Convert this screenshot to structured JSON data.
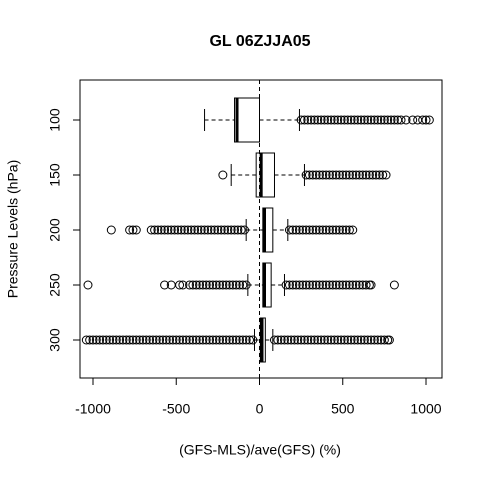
{
  "chart_data": {
    "type": "boxplot",
    "title": "GL 06ZJJA05",
    "x_label": "(GFS-MLS)/ave(GFS) (%)",
    "y_label": "Pressure Levels (hPa)",
    "categories": [
      "100",
      "150",
      "200",
      "250",
      "300"
    ],
    "xlim": [
      -1078,
      1096
    ],
    "xticks": [
      -1000,
      -500,
      0,
      500,
      1000
    ],
    "vline": 0,
    "boxes": [
      {
        "whisker_low": -330,
        "q1": -150,
        "median": -135,
        "q3": 0,
        "whisker_high": 240,
        "outliers": [
          250,
          270,
          290,
          310,
          330,
          350,
          370,
          390,
          410,
          430,
          450,
          470,
          490,
          510,
          530,
          550,
          570,
          590,
          610,
          630,
          650,
          670,
          690,
          710,
          730,
          750,
          770,
          790,
          810,
          830,
          850,
          880,
          920,
          950,
          980,
          1000,
          1020
        ]
      },
      {
        "whisker_low": -170,
        "q1": -20,
        "median": 10,
        "q3": 90,
        "whisker_high": 270,
        "outliers": [
          -220,
          280,
          300,
          320,
          340,
          360,
          380,
          400,
          420,
          440,
          460,
          480,
          500,
          520,
          540,
          560,
          580,
          600,
          620,
          640,
          660,
          680,
          700,
          720,
          740,
          760
        ]
      },
      {
        "whisker_low": -80,
        "q1": 20,
        "median": 30,
        "q3": 80,
        "whisker_high": 170,
        "outliers": [
          -890,
          -780,
          -760,
          -740,
          -650,
          -630,
          -610,
          -590,
          -570,
          -550,
          -530,
          -510,
          -490,
          -470,
          -450,
          -430,
          -410,
          -390,
          -370,
          -350,
          -330,
          -310,
          -290,
          -270,
          -250,
          -230,
          -210,
          -190,
          -170,
          -150,
          -130,
          -110,
          -90,
          180,
          200,
          220,
          240,
          260,
          280,
          300,
          320,
          340,
          360,
          380,
          400,
          420,
          440,
          460,
          480,
          500,
          520,
          540,
          560
        ]
      },
      {
        "whisker_low": -70,
        "q1": 20,
        "median": 30,
        "q3": 70,
        "whisker_high": 150,
        "outliers": [
          -1030,
          -570,
          -530,
          -480,
          -460,
          -420,
          -400,
          -380,
          -360,
          -340,
          -320,
          -300,
          -280,
          -260,
          -240,
          -220,
          -200,
          -180,
          -160,
          -140,
          -120,
          -100,
          -80,
          160,
          180,
          200,
          220,
          240,
          260,
          280,
          300,
          320,
          340,
          360,
          380,
          400,
          420,
          440,
          460,
          480,
          500,
          520,
          540,
          560,
          580,
          600,
          620,
          640,
          660,
          670,
          810
        ]
      },
      {
        "whisker_low": -30,
        "q1": 5,
        "median": 15,
        "q3": 35,
        "whisker_high": 80,
        "outliers": [
          -1040,
          -1020,
          -1000,
          -980,
          -960,
          -940,
          -920,
          -900,
          -880,
          -860,
          -840,
          -820,
          -800,
          -780,
          -760,
          -740,
          -720,
          -700,
          -680,
          -660,
          -640,
          -620,
          -600,
          -580,
          -560,
          -540,
          -520,
          -500,
          -480,
          -460,
          -440,
          -420,
          -400,
          -380,
          -360,
          -340,
          -320,
          -300,
          -280,
          -260,
          -240,
          -220,
          -200,
          -180,
          -160,
          -140,
          -120,
          -100,
          -80,
          -60,
          -40,
          90,
          110,
          130,
          150,
          170,
          190,
          210,
          230,
          250,
          270,
          290,
          310,
          330,
          350,
          370,
          390,
          410,
          430,
          450,
          470,
          490,
          510,
          530,
          550,
          570,
          590,
          610,
          630,
          650,
          670,
          690,
          710,
          730,
          750,
          770,
          780
        ]
      }
    ]
  }
}
